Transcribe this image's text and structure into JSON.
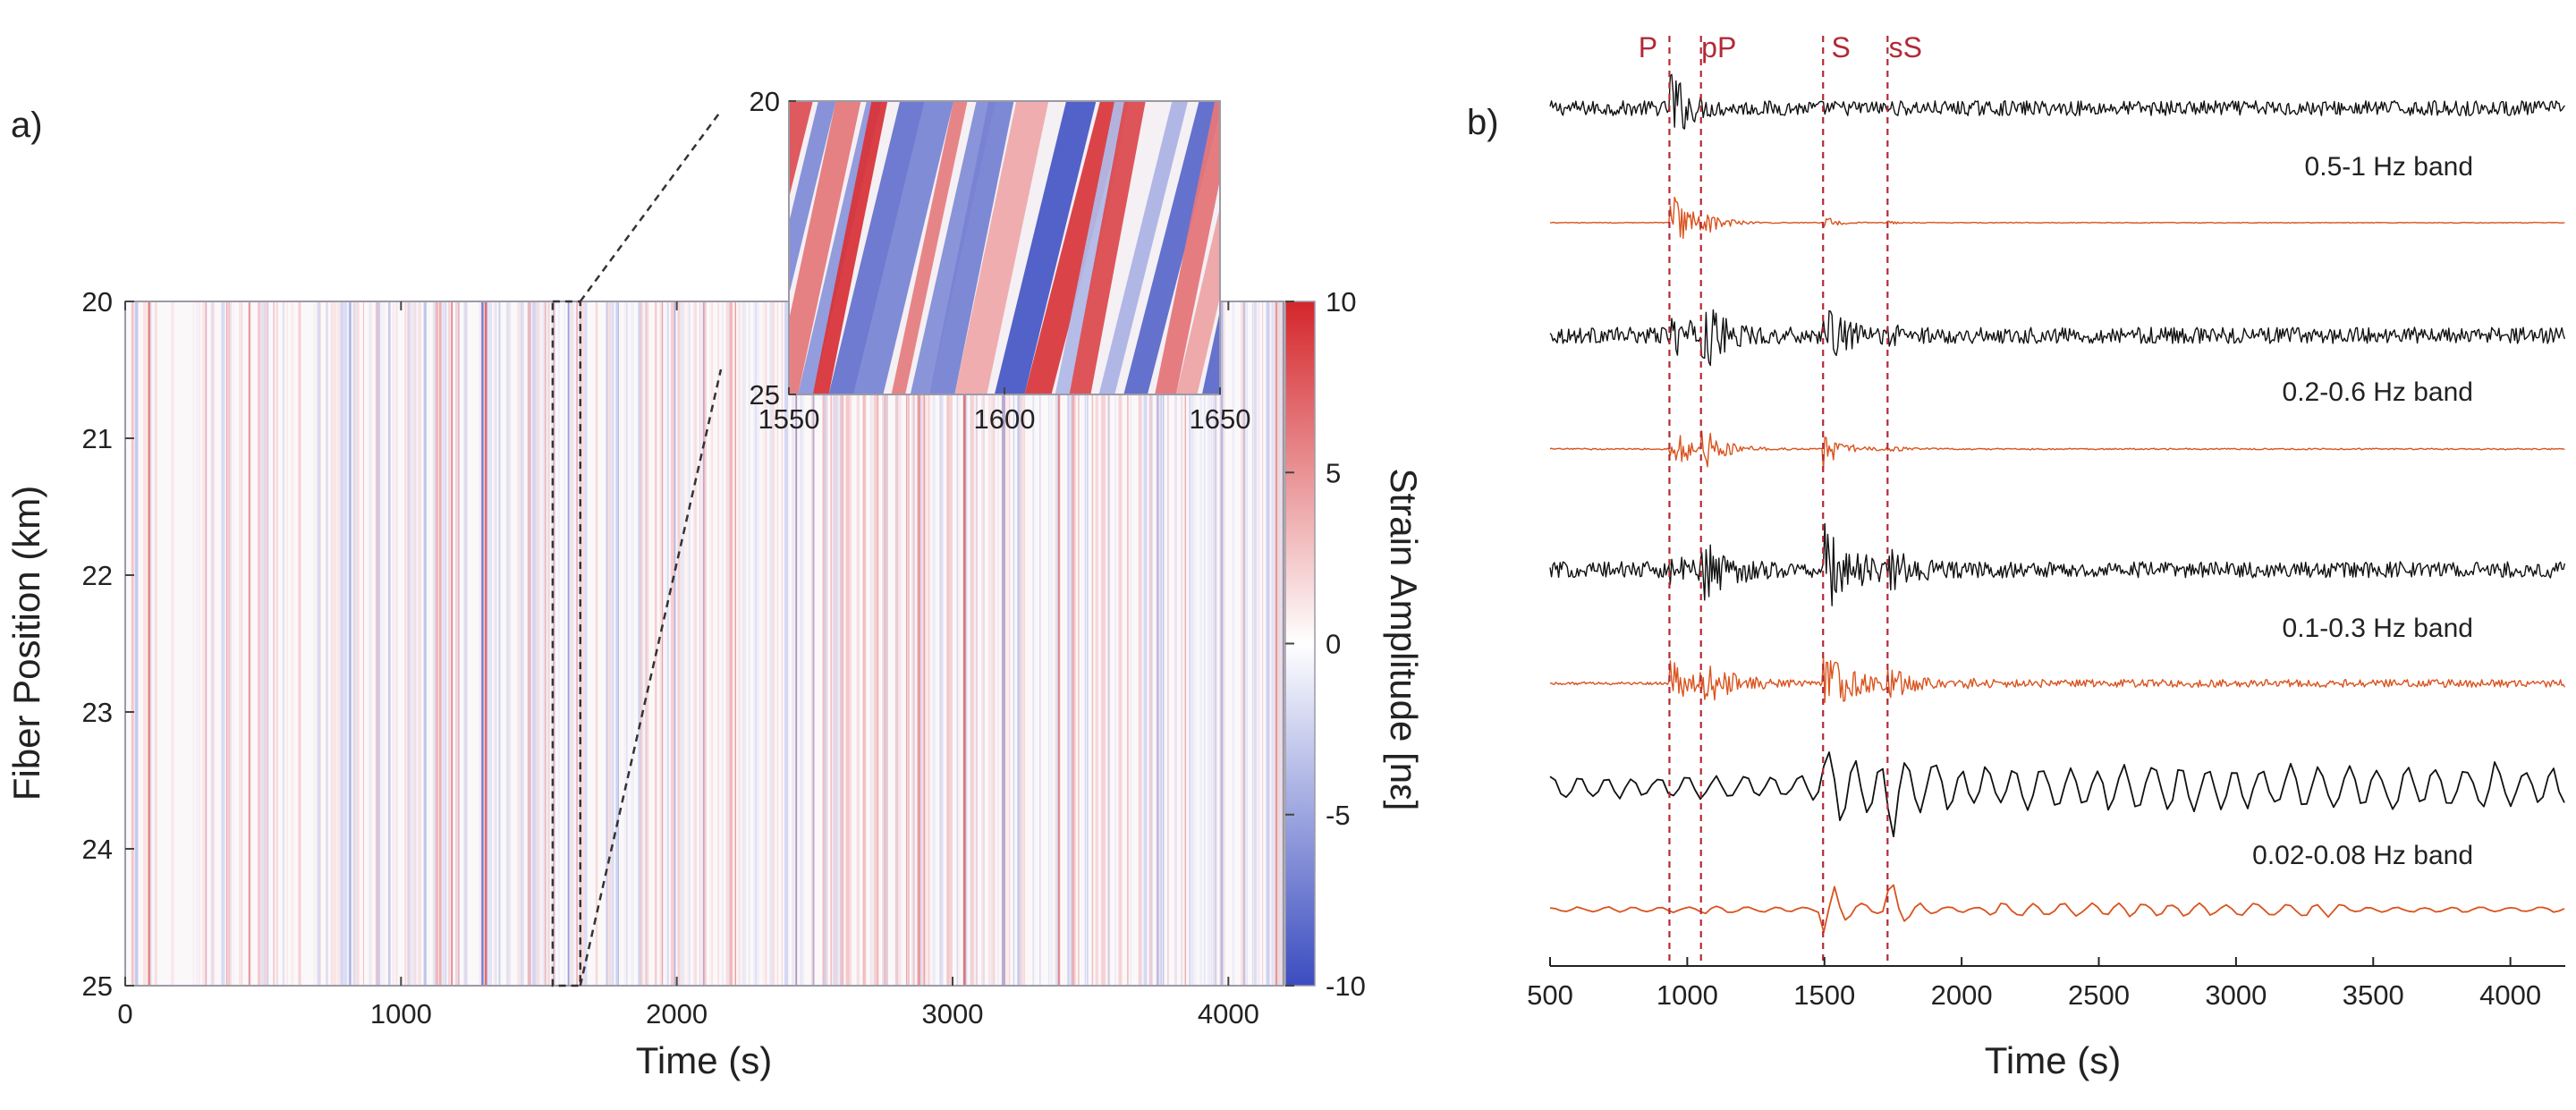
{
  "chart_data": [
    {
      "type": "heatmap",
      "panel_label": "a)",
      "xlabel": "Time (s)",
      "ylabel": "Fiber Position (km)",
      "xlim": [
        0,
        4200
      ],
      "ylim": [
        20,
        25
      ],
      "x_ticks": [
        0,
        1000,
        2000,
        3000,
        4000
      ],
      "y_ticks": [
        20,
        21,
        22,
        23,
        24,
        25
      ],
      "colormap": [
        "#3b4cc0",
        "#ffffff",
        "#d4262b"
      ],
      "colorbar": {
        "label": "Strain Amplitude [nε]",
        "range": [
          -10,
          10
        ],
        "ticks": [
          10,
          5,
          0,
          -5,
          -10
        ]
      },
      "highlight_window": {
        "x_range": [
          1550,
          1650
        ],
        "y_range": [
          20,
          25
        ]
      },
      "inset": {
        "x_range": [
          1550,
          1650
        ],
        "x_ticks": [
          1550,
          1600,
          1650
        ],
        "y_ticks": [
          20,
          25
        ]
      }
    },
    {
      "type": "line",
      "panel_label": "b)",
      "xlabel": "Time (s)",
      "xlim": [
        500,
        4200
      ],
      "x_ticks": [
        500,
        1000,
        1500,
        2000,
        2500,
        3000,
        3500,
        4000
      ],
      "phases": [
        {
          "label": "P",
          "time": 935
        },
        {
          "label": "pP",
          "time": 1050
        },
        {
          "label": "S",
          "time": 1495
        },
        {
          "label": "sS",
          "time": 1730
        }
      ],
      "bands": [
        {
          "label": "0.5-1 Hz band",
          "traces": [
            "black",
            "orange"
          ]
        },
        {
          "label": "0.2-0.6 Hz band",
          "traces": [
            "black",
            "orange"
          ]
        },
        {
          "label": "0.1-0.3 Hz band",
          "traces": [
            "black",
            "orange"
          ]
        },
        {
          "label": "0.02-0.08 Hz band",
          "traces": [
            "black",
            "orange"
          ]
        }
      ],
      "trace_colors": {
        "black": "#111111",
        "orange": "#d9531e"
      },
      "phase_line_color": "#b22a36"
    }
  ]
}
